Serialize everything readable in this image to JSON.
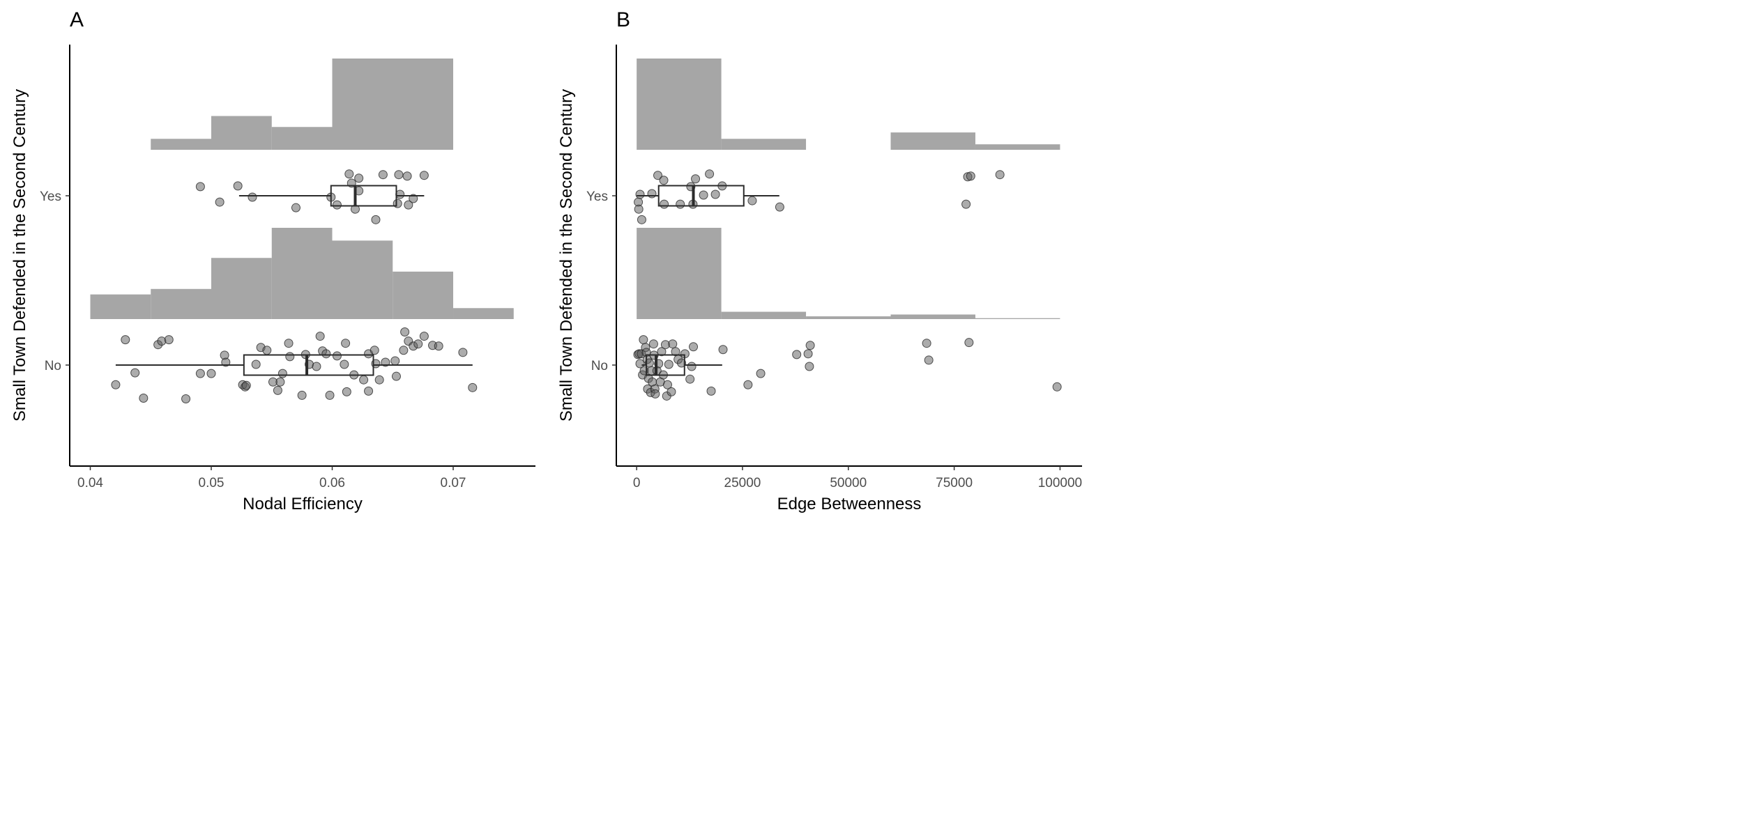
{
  "chart_data": [
    {
      "panel_tag": "A",
      "type": "raincloud",
      "xlabel": "Nodal Efficiency",
      "ylabel": "Small Town Defended in the Second Century",
      "xlim": [
        0.0383,
        0.0768
      ],
      "x_ticks": [
        0.04,
        0.05,
        0.06,
        0.07
      ],
      "x_tick_labels": [
        "0.04",
        "0.05",
        "0.06",
        "0.07"
      ],
      "categories": [
        "No",
        "Yes"
      ],
      "grid": false,
      "groups": [
        {
          "category": "Yes",
          "histogram": {
            "bins": [
              [
                0.045,
                0.05
              ],
              [
                0.05,
                0.055
              ],
              [
                0.055,
                0.06
              ],
              [
                0.06,
                0.07
              ]
            ],
            "density": [
              0.12,
              0.37,
              0.25,
              1.0
            ]
          },
          "boxplot": {
            "whisker_low": 0.0523,
            "q1": 0.0599,
            "median": 0.0619,
            "q3": 0.0653,
            "whisker_high": 0.0676
          },
          "points": [
            [
              0.0491,
              0.13
            ],
            [
              0.0522,
              0.14
            ],
            [
              0.0507,
              -0.09
            ],
            [
              0.0534,
              -0.02
            ],
            [
              0.057,
              -0.17
            ],
            [
              0.0599,
              -0.02
            ],
            [
              0.0604,
              -0.13
            ],
            [
              0.0614,
              0.31
            ],
            [
              0.0616,
              0.18
            ],
            [
              0.0619,
              -0.19
            ],
            [
              0.0622,
              0.07
            ],
            [
              0.0636,
              -0.34
            ],
            [
              0.0642,
              0.3
            ],
            [
              0.0654,
              -0.11
            ],
            [
              0.0655,
              0.3
            ],
            [
              0.0656,
              0.02
            ],
            [
              0.0662,
              0.28
            ],
            [
              0.0663,
              -0.13
            ],
            [
              0.0667,
              -0.04
            ],
            [
              0.0676,
              0.29
            ],
            [
              0.0622,
              0.25
            ]
          ]
        },
        {
          "category": "No",
          "histogram": {
            "bins": [
              [
                0.04,
                0.045
              ],
              [
                0.045,
                0.05
              ],
              [
                0.05,
                0.055
              ],
              [
                0.055,
                0.06
              ],
              [
                0.06,
                0.065
              ],
              [
                0.065,
                0.07
              ],
              [
                0.07,
                0.075
              ]
            ],
            "density": [
              0.27,
              0.33,
              0.67,
              1.0,
              0.86,
              0.52,
              0.12
            ]
          },
          "boxplot": {
            "whisker_low": 0.0421,
            "q1": 0.0527,
            "median": 0.0579,
            "q3": 0.0634,
            "whisker_high": 0.0716
          },
          "points": [
            [
              0.0429,
              0.36
            ],
            [
              0.0437,
              -0.11
            ],
            [
              0.0421,
              -0.28
            ],
            [
              0.0444,
              -0.47
            ],
            [
              0.0456,
              0.29
            ],
            [
              0.0459,
              0.34
            ],
            [
              0.0465,
              0.36
            ],
            [
              0.0479,
              -0.48
            ],
            [
              0.0491,
              -0.12
            ],
            [
              0.05,
              -0.12
            ],
            [
              0.0511,
              0.14
            ],
            [
              0.0512,
              0.04
            ],
            [
              0.0526,
              -0.28
            ],
            [
              0.0528,
              -0.31
            ],
            [
              0.0529,
              -0.29
            ],
            [
              0.0541,
              0.25
            ],
            [
              0.0537,
              0.01
            ],
            [
              0.0546,
              0.21
            ],
            [
              0.0551,
              -0.24
            ],
            [
              0.0555,
              -0.36
            ],
            [
              0.0557,
              -0.24
            ],
            [
              0.0559,
              -0.12
            ],
            [
              0.0564,
              0.31
            ],
            [
              0.0565,
              0.12
            ],
            [
              0.0575,
              -0.43
            ],
            [
              0.0578,
              0.15
            ],
            [
              0.0581,
              0.01
            ],
            [
              0.0587,
              -0.02
            ],
            [
              0.059,
              0.41
            ],
            [
              0.0592,
              0.2
            ],
            [
              0.0595,
              0.16
            ],
            [
              0.0598,
              -0.43
            ],
            [
              0.0604,
              0.13
            ],
            [
              0.061,
              0.01
            ],
            [
              0.0611,
              0.31
            ],
            [
              0.0612,
              -0.38
            ],
            [
              0.0618,
              -0.14
            ],
            [
              0.0626,
              -0.21
            ],
            [
              0.063,
              0.16
            ],
            [
              0.063,
              -0.37
            ],
            [
              0.0635,
              0.21
            ],
            [
              0.0636,
              0.02
            ],
            [
              0.0639,
              -0.21
            ],
            [
              0.0644,
              0.04
            ],
            [
              0.0652,
              0.06
            ],
            [
              0.0653,
              -0.16
            ],
            [
              0.0659,
              0.21
            ],
            [
              0.066,
              0.47
            ],
            [
              0.0663,
              0.34
            ],
            [
              0.0667,
              0.27
            ],
            [
              0.0671,
              0.3
            ],
            [
              0.0676,
              0.41
            ],
            [
              0.0683,
              0.28
            ],
            [
              0.0688,
              0.27
            ],
            [
              0.0708,
              0.18
            ],
            [
              0.0716,
              -0.32
            ]
          ]
        }
      ]
    },
    {
      "panel_tag": "B",
      "type": "raincloud",
      "xlabel": "Edge Betweenness",
      "ylabel": "Small Town Defended in the Second Century",
      "xlim": [
        -4800,
        105200
      ],
      "x_ticks": [
        0,
        25000,
        50000,
        75000,
        100000
      ],
      "x_tick_labels": [
        "0",
        "25000",
        "50000",
        "75000",
        "100000"
      ],
      "categories": [
        "No",
        "Yes"
      ],
      "grid": false,
      "groups": [
        {
          "category": "Yes",
          "histogram": {
            "bins": [
              [
                0,
                20000
              ],
              [
                20000,
                40000
              ],
              [
                60000,
                80000
              ],
              [
                80000,
                100000
              ]
            ],
            "density": [
              1.0,
              0.12,
              0.19,
              0.06
            ]
          },
          "boxplot": {
            "whisker_low": 0,
            "q1": 5200,
            "median": 13400,
            "q3": 25300,
            "whisker_high": 33700
          },
          "points": [
            [
              400,
              -0.09
            ],
            [
              800,
              0.02
            ],
            [
              500,
              -0.19
            ],
            [
              1200,
              -0.34
            ],
            [
              3600,
              0.03
            ],
            [
              5000,
              0.29
            ],
            [
              6400,
              0.22
            ],
            [
              6500,
              -0.12
            ],
            [
              10300,
              -0.12
            ],
            [
              12800,
              0.13
            ],
            [
              13300,
              -0.12
            ],
            [
              13900,
              0.24
            ],
            [
              15800,
              0.01
            ],
            [
              17200,
              0.31
            ],
            [
              18600,
              0.02
            ],
            [
              20200,
              0.14
            ],
            [
              27300,
              -0.07
            ],
            [
              33800,
              -0.16
            ],
            [
              77800,
              -0.12
            ],
            [
              78200,
              0.27
            ],
            [
              78900,
              0.28
            ],
            [
              85800,
              0.3
            ]
          ]
        },
        {
          "category": "No",
          "histogram": {
            "bins": [
              [
                0,
                20000
              ],
              [
                20000,
                40000
              ],
              [
                40000,
                60000
              ],
              [
                60000,
                80000
              ],
              [
                80000,
                100000
              ]
            ],
            "density": [
              1.0,
              0.08,
              0.03,
              0.05,
              0.01
            ]
          },
          "boxplot": {
            "whisker_low": 1200,
            "q1": 2300,
            "median": 4600,
            "q3": 11300,
            "whisker_high": 20200
          },
          "points": [
            [
              300,
              0.15
            ],
            [
              600,
              0.16
            ],
            [
              800,
              0.02
            ],
            [
              1100,
              0.16
            ],
            [
              1400,
              -0.14
            ],
            [
              1600,
              0.36
            ],
            [
              1800,
              -0.08
            ],
            [
              2100,
              0.25
            ],
            [
              2300,
              0.18
            ],
            [
              2500,
              0.08
            ],
            [
              2600,
              -0.34
            ],
            [
              2800,
              -0.19
            ],
            [
              3000,
              0.03
            ],
            [
              3300,
              -0.39
            ],
            [
              3500,
              -0.08
            ],
            [
              3700,
              -0.24
            ],
            [
              4000,
              0.3
            ],
            [
              4100,
              0.14
            ],
            [
              4300,
              -0.34
            ],
            [
              4400,
              -0.41
            ],
            [
              4800,
              -0.08
            ],
            [
              5200,
              0.02
            ],
            [
              5600,
              -0.24
            ],
            [
              5900,
              0.19
            ],
            [
              6300,
              -0.14
            ],
            [
              6800,
              0.29
            ],
            [
              7100,
              -0.44
            ],
            [
              7300,
              -0.28
            ],
            [
              7600,
              0.01
            ],
            [
              8200,
              -0.38
            ],
            [
              8500,
              0.3
            ],
            [
              9200,
              0.19
            ],
            [
              9800,
              0.08
            ],
            [
              10600,
              0.03
            ],
            [
              11400,
              0.16
            ],
            [
              12600,
              -0.2
            ],
            [
              13000,
              -0.02
            ],
            [
              13400,
              0.26
            ],
            [
              17600,
              -0.37
            ],
            [
              20400,
              0.22
            ],
            [
              26300,
              -0.28
            ],
            [
              29300,
              -0.12
            ],
            [
              37800,
              0.15
            ],
            [
              40500,
              0.16
            ],
            [
              40800,
              -0.02
            ],
            [
              41000,
              0.28
            ],
            [
              68500,
              0.31
            ],
            [
              69000,
              0.07
            ],
            [
              78500,
              0.32
            ],
            [
              99300,
              -0.31
            ]
          ]
        }
      ]
    }
  ]
}
